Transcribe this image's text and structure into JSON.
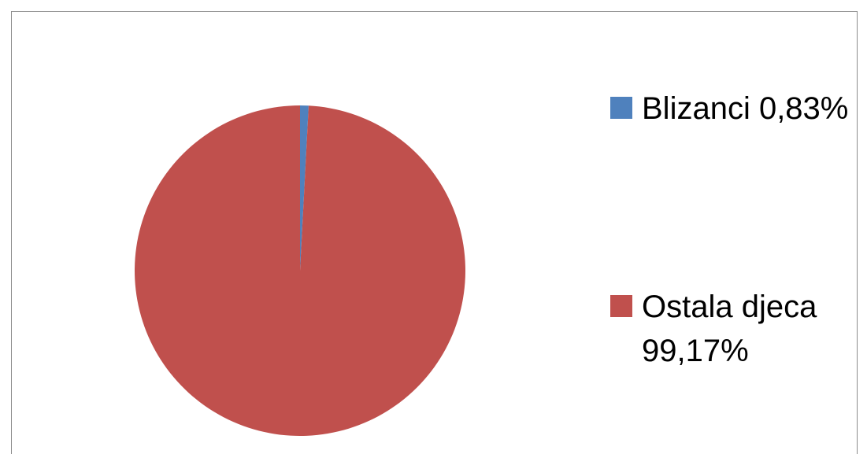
{
  "chart_data": {
    "type": "pie",
    "title": "",
    "slices": [
      {
        "label": "Blizanci 0,83%",
        "value": 0.83,
        "color": "#4f81bd"
      },
      {
        "label": "Ostala djeca 99,17%",
        "value": 99.17,
        "color": "#c0504d"
      }
    ],
    "legend_position": "right"
  }
}
